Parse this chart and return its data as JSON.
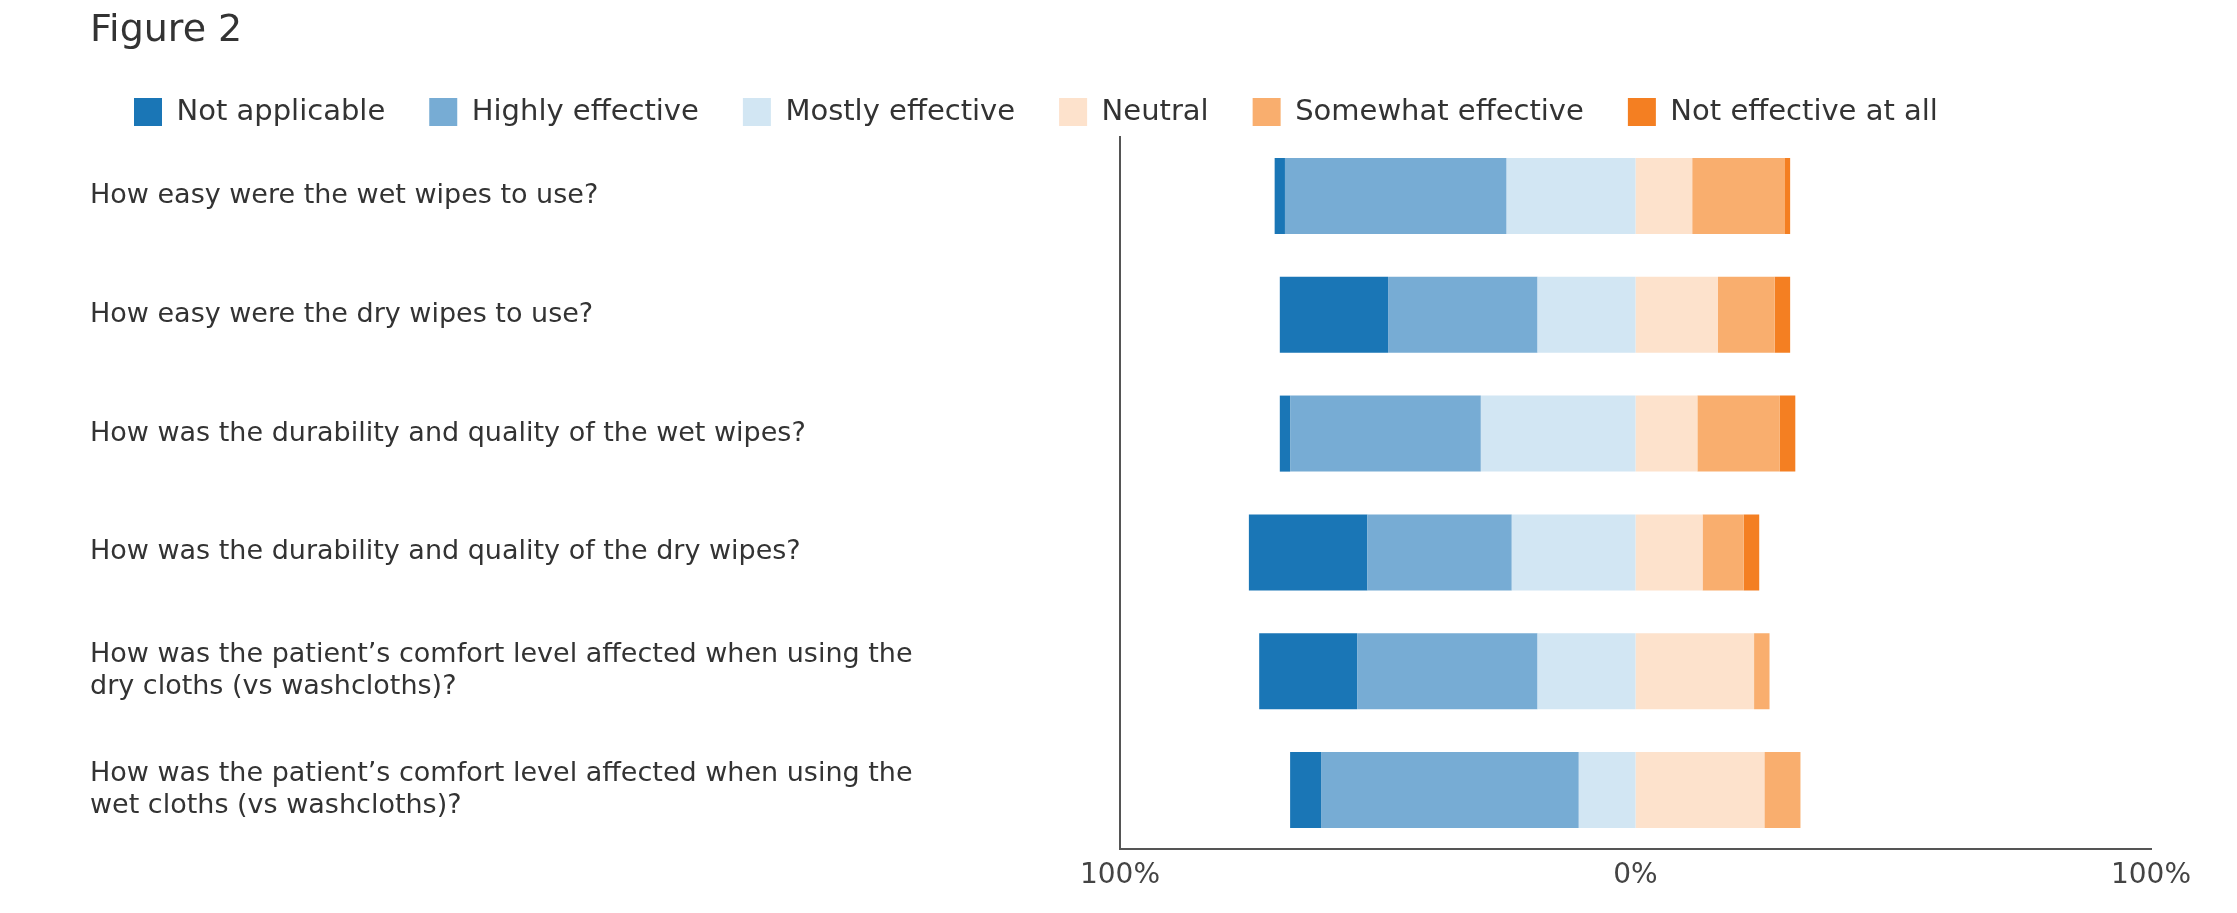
{
  "chart_data": {
    "type": "bar",
    "title": "Figure 2",
    "orientation": "horizontal",
    "stacked": true,
    "categories": [
      "How easy were the wet wipes to use?",
      "How easy were the dry wipes to use?",
      "How was the durability and quality of the wet wipes?",
      "How was the durability and quality of the dry wipes?",
      "How was the patient’s comfort level affected when using the dry cloths (vs washcloths)?",
      "How was the patient’s comfort level affected when using the wet cloths (vs washcloths)?"
    ],
    "series": [
      {
        "name": "Mostly effective",
        "color": "#d2e6f3",
        "values": [
          -25,
          -19,
          -30,
          -24,
          -19,
          -11
        ]
      },
      {
        "name": "Highly effective",
        "color": "#77acd4",
        "values": [
          -43,
          -29,
          -37,
          -28,
          -35,
          -50
        ]
      },
      {
        "name": "Not applicable",
        "color": "#1a76b6",
        "values": [
          -2,
          -21,
          -2,
          -23,
          -19,
          -6
        ]
      },
      {
        "name": "Neutral",
        "color": "#fde2cc",
        "values": [
          11,
          16,
          12,
          13,
          23,
          25
        ]
      },
      {
        "name": "Somewhat effective",
        "color": "#f9ae6e",
        "values": [
          18,
          11,
          16,
          8,
          3,
          7
        ]
      },
      {
        "name": "Not effective at all",
        "color": "#f47f22",
        "values": [
          1,
          3,
          3,
          3,
          0,
          0
        ]
      }
    ],
    "xlim": [
      -100,
      100
    ],
    "xticks": [
      {
        "value": -100,
        "label": "100%"
      },
      {
        "value": 0,
        "label": "0%"
      },
      {
        "value": 100,
        "label": "100%"
      }
    ],
    "grid": false,
    "legend": "top left"
  }
}
